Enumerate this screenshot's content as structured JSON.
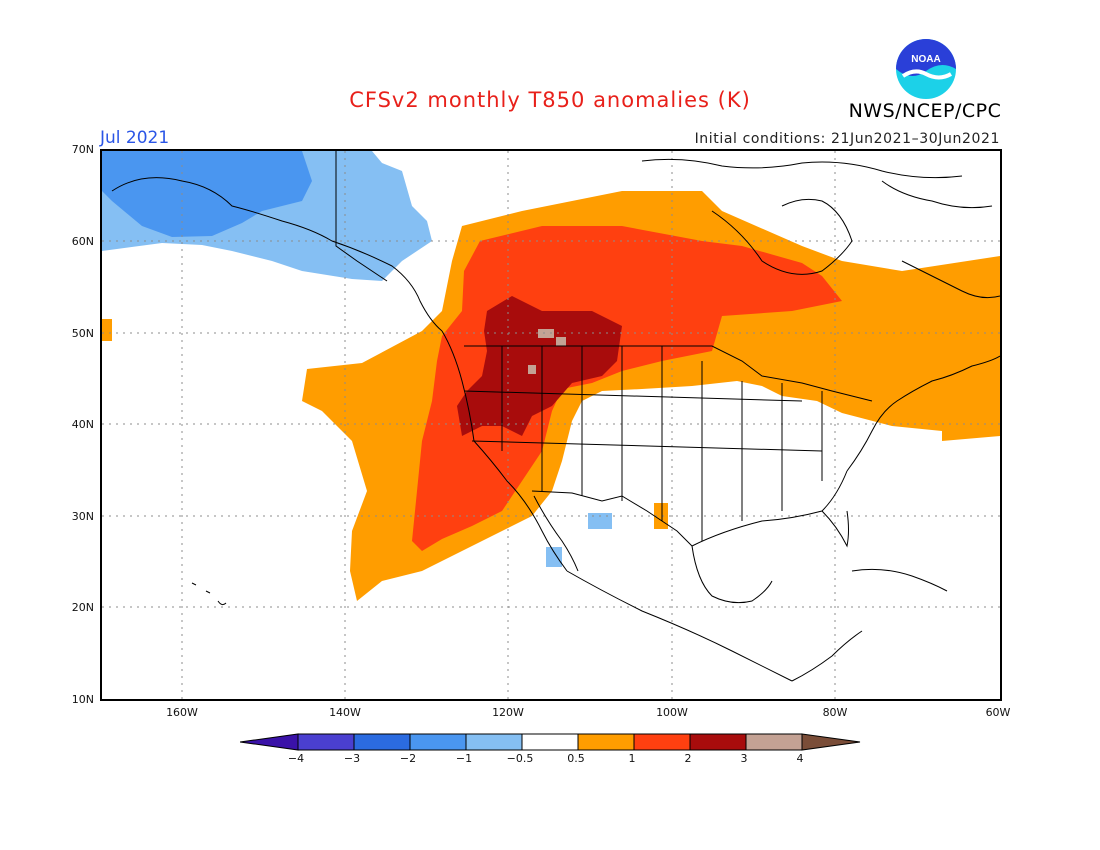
{
  "title": "CFSv2 monthly T850 anomalies (K)",
  "organization": "NWS/NCEP/CPC",
  "logo_text": "NOAA",
  "valid_month": "Jul 2021",
  "initial_conditions": "Initial conditions: 21Jun2021–30Jun2021",
  "lat_labels": [
    "70N",
    "60N",
    "50N",
    "40N",
    "30N",
    "20N",
    "10N"
  ],
  "lon_labels": [
    "160W",
    "140W",
    "120W",
    "100W",
    "80W",
    "60W"
  ],
  "colorbar": {
    "tick_labels": [
      "−4",
      "−3",
      "−2",
      "−1",
      "−0.5",
      "0.5",
      "1",
      "2",
      "3",
      "4"
    ],
    "bins": [
      {
        "range": "< -4",
        "color": "#3a12a8"
      },
      {
        "range": "-4 to -3",
        "color": "#4a3fd0"
      },
      {
        "range": "-3 to -2",
        "color": "#2b6be0"
      },
      {
        "range": "-2 to -1",
        "color": "#4a96f0"
      },
      {
        "range": "-1 to -0.5",
        "color": "#85bff3"
      },
      {
        "range": "-0.5 to 0.5",
        "color": "#ffffff"
      },
      {
        "range": "0.5 to 1",
        "color": "#ff9d00"
      },
      {
        "range": "1 to 2",
        "color": "#ff4010"
      },
      {
        "range": "2 to 3",
        "color": "#a80c0c"
      },
      {
        "range": "3 to 4",
        "color": "#c4a294"
      },
      {
        "range": "> 4",
        "color": "#7a4d38"
      }
    ]
  },
  "map": {
    "lat_range": [
      10,
      70
    ],
    "lon_range": [
      -171,
      -60
    ],
    "features": [
      "coastlines",
      "US state borders",
      "national borders",
      "dotted graticule"
    ],
    "anomaly_regions": [
      {
        "area": "Alaska and Gulf of Alaska",
        "anomaly_bin": "-2 to -1"
      },
      {
        "area": "Bering Strait region",
        "anomaly_bin": "-1 to -0.5"
      },
      {
        "area": "Western Canada, Pacific Northwest, Northern Plains",
        "anomaly_bin": "1 to 2"
      },
      {
        "area": "Idaho, Montana, Nevada, Oregon interior",
        "anomaly_bin": "2 to 3"
      },
      {
        "area": "Southwestern Montana patches",
        "anomaly_bin": "3 to 4"
      },
      {
        "area": "Eastern Pacific off California and Baja",
        "anomaly_bin": "0.5 to 1"
      },
      {
        "area": "Hudson Bay, Great Lakes, Northeast, Atlantic Canada",
        "anomaly_bin": "0.5 to 1"
      },
      {
        "area": "Northern Mexico small patches",
        "anomaly_bin": "-1 to -0.5"
      },
      {
        "area": "Central and southeastern United States",
        "anomaly_bin": "-0.5 to 0.5"
      }
    ]
  }
}
